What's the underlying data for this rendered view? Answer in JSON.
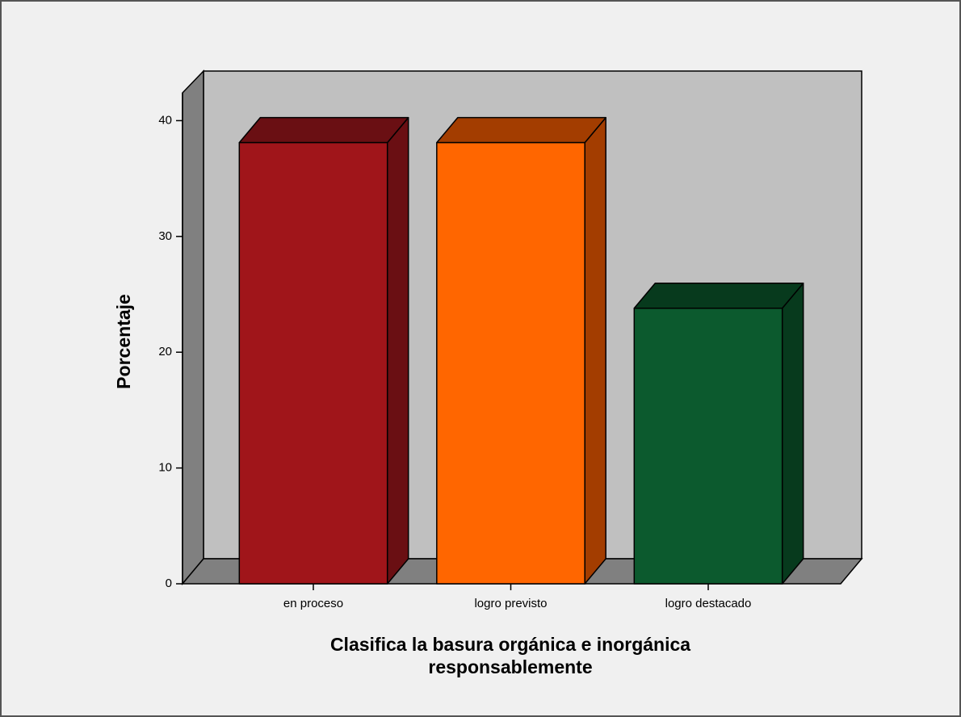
{
  "chart_data": {
    "type": "bar3d",
    "ylabel": "Porcentaje",
    "xlabel": [
      "Clasifica la basura orgánica e inorgánica",
      "responsablemente"
    ],
    "categories": [
      "en proceso",
      "logro previsto",
      "logro destacado"
    ],
    "values": [
      38.1,
      38.1,
      23.8
    ],
    "colors": [
      "#a0151a",
      "#ff6600",
      "#0c5a2e"
    ],
    "side_colors": [
      "#6a0f13",
      "#a33d00",
      "#073a1d"
    ],
    "ylim": [
      0,
      42.4
    ],
    "yticks": [
      0,
      10,
      20,
      30,
      40
    ]
  }
}
